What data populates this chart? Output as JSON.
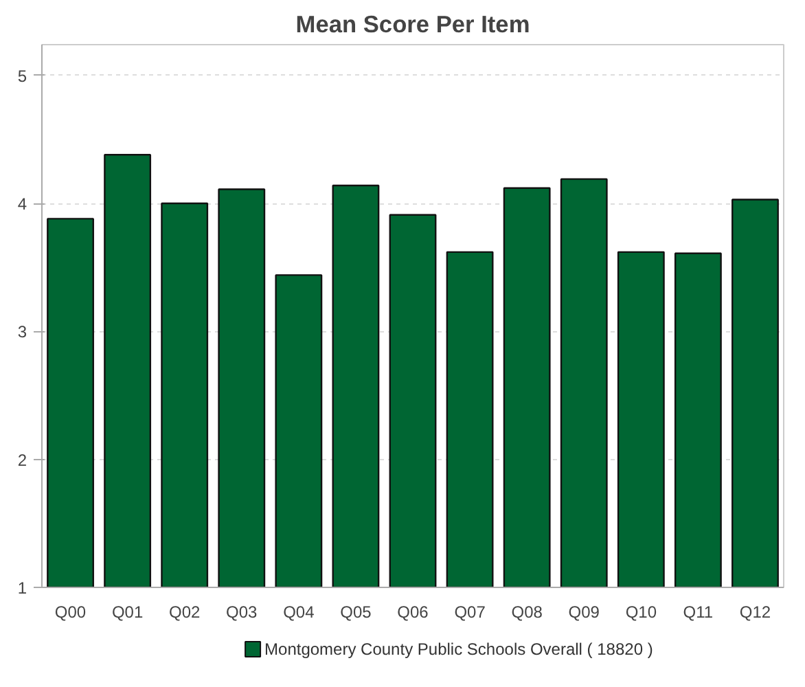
{
  "chart_data": {
    "type": "bar",
    "title": "Mean Score Per Item",
    "categories": [
      "Q00",
      "Q01",
      "Q02",
      "Q03",
      "Q04",
      "Q05",
      "Q06",
      "Q07",
      "Q08",
      "Q09",
      "Q10",
      "Q11",
      "Q12"
    ],
    "series": [
      {
        "name": "Montgomery County Public Schools Overall ( 18820 )",
        "color": "#006633",
        "values": [
          3.88,
          4.38,
          4.0,
          4.11,
          3.44,
          4.14,
          3.91,
          3.62,
          4.12,
          4.19,
          3.62,
          3.61,
          4.03
        ]
      }
    ],
    "ylim": [
      1,
      5.24
    ],
    "yticks": [
      1,
      2,
      3,
      4,
      5
    ],
    "grid": "y",
    "legend": "bottom"
  }
}
